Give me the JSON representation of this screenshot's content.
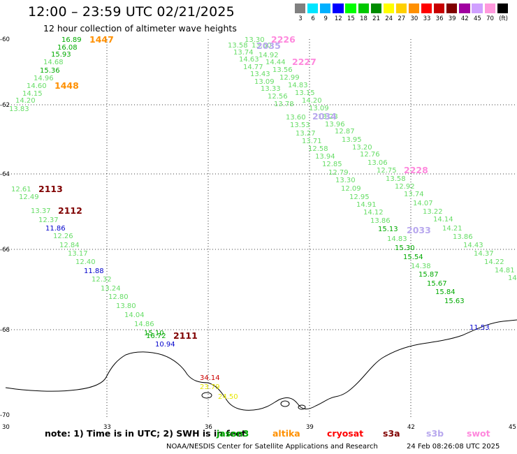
{
  "header": {
    "title": "12:00 – 23:59 UTC 02/21/2025",
    "subtitle": "12 hour collection of altimeter wave heights"
  },
  "legend": {
    "unit": "(ft)",
    "bins": [
      {
        "label": "3",
        "color": "#808080"
      },
      {
        "label": "6",
        "color": "#00e5ff"
      },
      {
        "label": "9",
        "color": "#00b0ff"
      },
      {
        "label": "12",
        "color": "#0000ff"
      },
      {
        "label": "15",
        "color": "#00ff00"
      },
      {
        "label": "18",
        "color": "#00c800"
      },
      {
        "label": "21",
        "color": "#008c00"
      },
      {
        "label": "24",
        "color": "#ffff00"
      },
      {
        "label": "27",
        "color": "#ffd000"
      },
      {
        "label": "30",
        "color": "#ff9000"
      },
      {
        "label": "33",
        "color": "#ff0000"
      },
      {
        "label": "36",
        "color": "#c80000"
      },
      {
        "label": "39",
        "color": "#800000"
      },
      {
        "label": "42",
        "color": "#a000a0"
      },
      {
        "label": "45",
        "color": "#d0a0ff"
      },
      {
        "label": "70",
        "color": "#ff99dd"
      },
      {
        "label": "",
        "color": "#000000"
      }
    ]
  },
  "map": {
    "lon_ticks": [
      "30",
      "33",
      "36",
      "39",
      "42",
      "45"
    ],
    "lat_ticks": [
      "-60",
      "-62",
      "-64",
      "-66",
      "-68",
      "-70"
    ],
    "palette": {
      "light_green": "#66dd66",
      "green": "#00aa00",
      "dark_green": "#007a00",
      "blue": "#0000cc",
      "dark_red": "#800000",
      "orange": "#ff9000",
      "pink": "#ff88dd",
      "lavender": "#b8a8ee",
      "yellow": "#e6e600",
      "red": "#cc0000"
    },
    "track_a": {
      "values": [
        {
          "v": "16.89",
          "c": "green"
        },
        {
          "v": "16.08",
          "c": "green"
        },
        {
          "v": "15.93",
          "c": "green"
        },
        {
          "v": "14.68",
          "c": "light_green"
        },
        {
          "v": "15.36",
          "c": "green"
        },
        {
          "v": "14.96",
          "c": "light_green"
        },
        {
          "v": "14.60",
          "c": "light_green"
        },
        {
          "v": "14.15",
          "c": "light_green"
        },
        {
          "v": "14.20",
          "c": "light_green"
        },
        {
          "v": "13.83",
          "c": "light_green"
        }
      ],
      "tags": [
        {
          "v": "1447",
          "c": "orange"
        },
        {
          "v": "1448",
          "c": "orange"
        }
      ]
    },
    "track_b": {
      "values": [
        {
          "v": "12.61",
          "c": "light_green"
        },
        {
          "v": "12.49",
          "c": "light_green"
        },
        {
          "v": "13.37",
          "c": "light_green"
        },
        {
          "v": "12.37",
          "c": "light_green"
        },
        {
          "v": "11.86",
          "c": "blue"
        },
        {
          "v": "12.26",
          "c": "light_green"
        },
        {
          "v": "12.84",
          "c": "light_green"
        },
        {
          "v": "13.17",
          "c": "light_green"
        },
        {
          "v": "12.40",
          "c": "light_green"
        },
        {
          "v": "11.88",
          "c": "blue"
        },
        {
          "v": "12.32",
          "c": "light_green"
        },
        {
          "v": "13.24",
          "c": "light_green"
        },
        {
          "v": "12.80",
          "c": "light_green"
        },
        {
          "v": "13.80",
          "c": "light_green"
        },
        {
          "v": "14.04",
          "c": "light_green"
        },
        {
          "v": "14.86",
          "c": "light_green"
        },
        {
          "v": "15.10",
          "c": "green"
        },
        {
          "v": "16.72",
          "c": "green"
        },
        {
          "v": "10.94",
          "c": "blue"
        },
        {
          "v": "34.14",
          "c": "red"
        },
        {
          "v": "23.79",
          "c": "yellow"
        },
        {
          "v": "24.50",
          "c": "yellow"
        }
      ],
      "tags": [
        {
          "v": "2113",
          "c": "dark_red"
        },
        {
          "v": "2112",
          "c": "dark_red"
        },
        {
          "v": "2111",
          "c": "dark_red"
        }
      ]
    },
    "track_c": {
      "values": [
        {
          "v": "13.30",
          "c": "light_green"
        },
        {
          "v": "13.58",
          "c": "light_green"
        },
        {
          "v": "13.60",
          "c": "light_green"
        },
        {
          "v": "13.74",
          "c": "light_green"
        },
        {
          "v": "14.92",
          "c": "light_green"
        },
        {
          "v": "14.63",
          "c": "light_green"
        },
        {
          "v": "14.44",
          "c": "light_green"
        },
        {
          "v": "14.77",
          "c": "light_green"
        },
        {
          "v": "13.56",
          "c": "light_green"
        },
        {
          "v": "13.43",
          "c": "light_green"
        },
        {
          "v": "12.99",
          "c": "light_green"
        },
        {
          "v": "13.09",
          "c": "light_green"
        },
        {
          "v": "14.83",
          "c": "light_green"
        },
        {
          "v": "13.33",
          "c": "light_green"
        },
        {
          "v": "13.15",
          "c": "light_green"
        },
        {
          "v": "12.56",
          "c": "light_green"
        },
        {
          "v": "14.20",
          "c": "light_green"
        },
        {
          "v": "13.78",
          "c": "light_green"
        },
        {
          "v": "13.09",
          "c": "light_green"
        },
        {
          "v": "13.60",
          "c": "light_green"
        },
        {
          "v": "13.28",
          "c": "light_green"
        },
        {
          "v": "13.53",
          "c": "light_green"
        },
        {
          "v": "13.96",
          "c": "light_green"
        },
        {
          "v": "13.27",
          "c": "light_green"
        },
        {
          "v": "12.87",
          "c": "light_green"
        },
        {
          "v": "13.71",
          "c": "light_green"
        },
        {
          "v": "13.95",
          "c": "light_green"
        },
        {
          "v": "12.58",
          "c": "light_green"
        },
        {
          "v": "13.20",
          "c": "light_green"
        },
        {
          "v": "13.94",
          "c": "light_green"
        },
        {
          "v": "12.76",
          "c": "light_green"
        },
        {
          "v": "12.85",
          "c": "light_green"
        },
        {
          "v": "13.06",
          "c": "light_green"
        },
        {
          "v": "12.79",
          "c": "light_green"
        },
        {
          "v": "12.75",
          "c": "light_green"
        },
        {
          "v": "13.30",
          "c": "light_green"
        },
        {
          "v": "13.58",
          "c": "light_green"
        },
        {
          "v": "12.09",
          "c": "light_green"
        },
        {
          "v": "12.92",
          "c": "light_green"
        },
        {
          "v": "12.95",
          "c": "light_green"
        },
        {
          "v": "13.74",
          "c": "light_green"
        },
        {
          "v": "14.91",
          "c": "light_green"
        },
        {
          "v": "14.07",
          "c": "light_green"
        },
        {
          "v": "14.12",
          "c": "light_green"
        },
        {
          "v": "13.22",
          "c": "light_green"
        },
        {
          "v": "13.86",
          "c": "light_green"
        },
        {
          "v": "14.14",
          "c": "light_green"
        },
        {
          "v": "15.13",
          "c": "green"
        },
        {
          "v": "14.21",
          "c": "light_green"
        },
        {
          "v": "14.83",
          "c": "light_green"
        },
        {
          "v": "13.86",
          "c": "light_green"
        },
        {
          "v": "15.30",
          "c": "green"
        },
        {
          "v": "14.43",
          "c": "light_green"
        },
        {
          "v": "15.54",
          "c": "green"
        },
        {
          "v": "14.37",
          "c": "light_green"
        },
        {
          "v": "14.38",
          "c": "light_green"
        },
        {
          "v": "14.22",
          "c": "light_green"
        },
        {
          "v": "15.87",
          "c": "green"
        },
        {
          "v": "14.81",
          "c": "light_green"
        },
        {
          "v": "15.67",
          "c": "green"
        },
        {
          "v": "14.",
          "c": "light_green"
        },
        {
          "v": "15.84",
          "c": "green"
        },
        {
          "v": "15.63",
          "c": "green"
        },
        {
          "v": "11.53",
          "c": "blue"
        }
      ],
      "tags": [
        {
          "v": "2226",
          "c": "pink"
        },
        {
          "v": "2035",
          "c": "lavender"
        },
        {
          "v": "2227",
          "c": "pink"
        },
        {
          "v": "2034",
          "c": "lavender"
        },
        {
          "v": "2228",
          "c": "pink"
        },
        {
          "v": "2033",
          "c": "lavender"
        }
      ]
    }
  },
  "footer": {
    "note": "note: 1) Time is in UTC; 2) SWH is in feet",
    "satellites": [
      {
        "name": "jason3",
        "color": "#00aa00"
      },
      {
        "name": "altika",
        "color": "#ff9000"
      },
      {
        "name": "cryosat",
        "color": "#ff0000"
      },
      {
        "name": "s3a",
        "color": "#800000"
      },
      {
        "name": "s3b",
        "color": "#b8a8ee"
      },
      {
        "name": "swot",
        "color": "#ff88dd"
      }
    ],
    "credit": "NOAA/NESDIS Center for Satellite Applications and Research",
    "timestamp": "24 Feb 08:26:08 UTC 2025"
  }
}
